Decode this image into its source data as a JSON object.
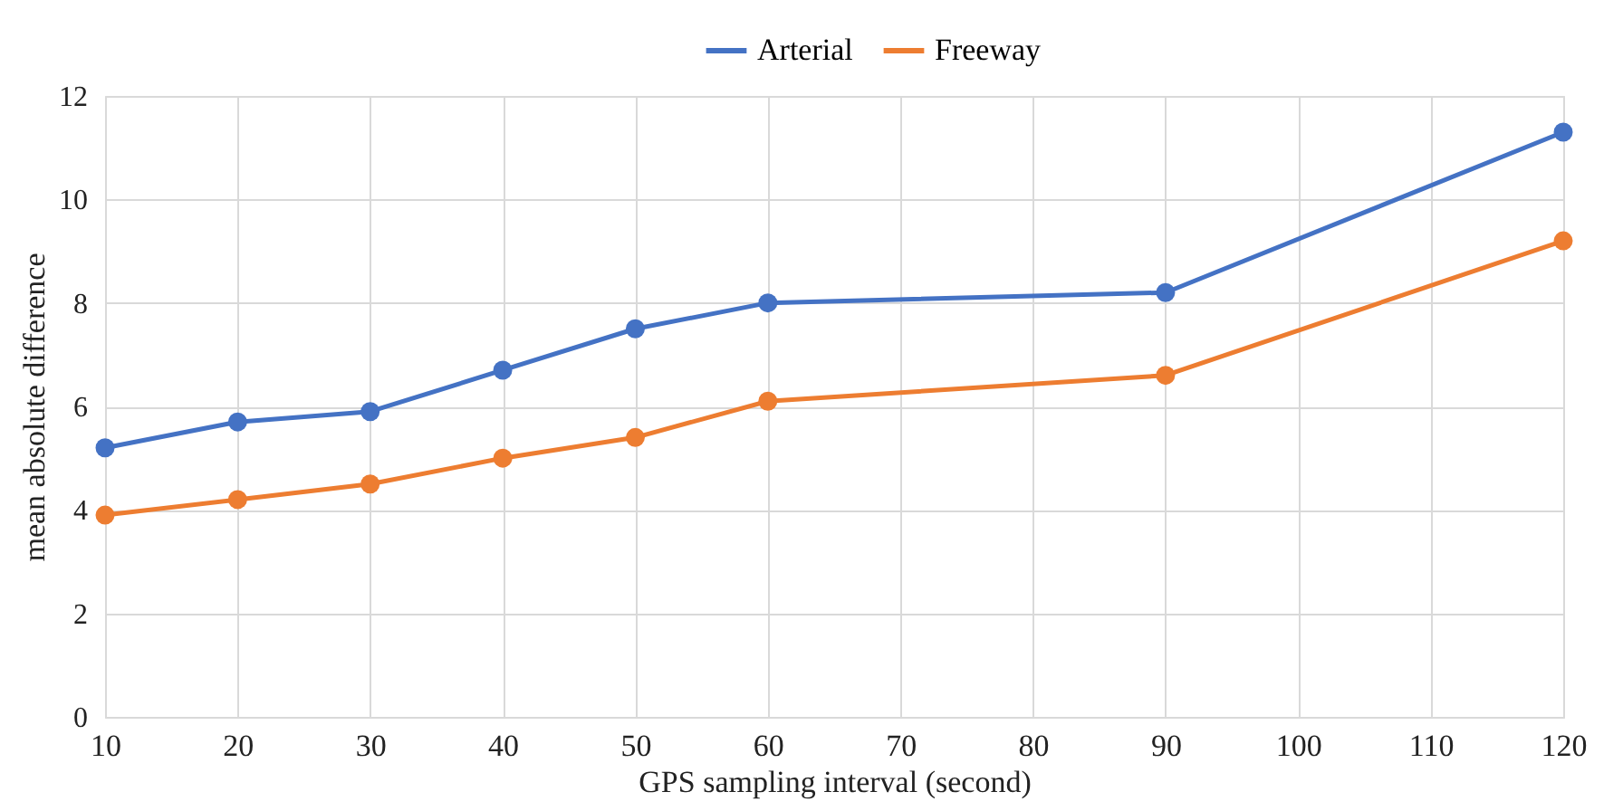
{
  "chart_data": {
    "type": "line",
    "xlabel": "GPS sampling interval (second)",
    "ylabel": "mean absolute difference",
    "x": [
      10,
      20,
      30,
      40,
      50,
      60,
      90,
      120
    ],
    "series": [
      {
        "name": "Arterial",
        "color": "#4472c4",
        "values": [
          5.2,
          5.7,
          5.9,
          6.7,
          7.5,
          8.0,
          8.2,
          11.3
        ]
      },
      {
        "name": "Freeway",
        "color": "#ed7d31",
        "values": [
          3.9,
          4.2,
          4.5,
          5.0,
          5.4,
          6.1,
          6.6,
          9.2
        ]
      }
    ],
    "xlim": [
      10,
      120
    ],
    "xticks": [
      10,
      20,
      30,
      40,
      50,
      60,
      70,
      80,
      90,
      100,
      110,
      120
    ],
    "ylim": [
      0,
      12
    ],
    "yticks": [
      0,
      2,
      4,
      6,
      8,
      10,
      12
    ],
    "grid": true,
    "legend": "top",
    "marker": "circle",
    "line_style": "solid"
  }
}
